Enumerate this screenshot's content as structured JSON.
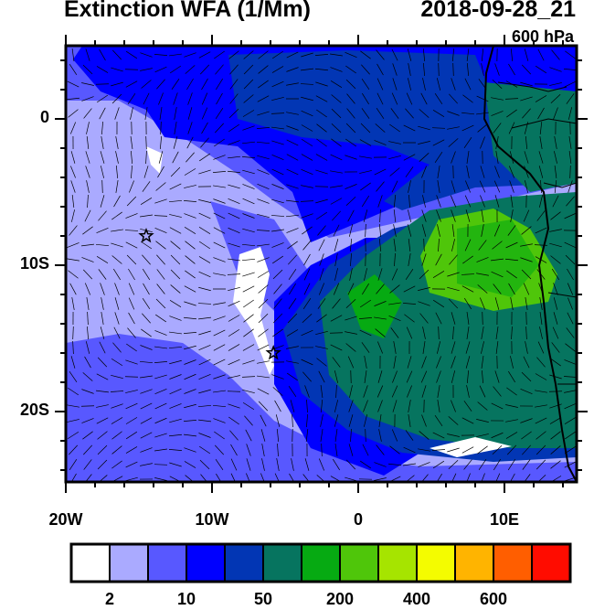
{
  "title": "Extinction WFA (1/Mm)",
  "valid_time": "2018-09-28_21",
  "level": "600 hPa",
  "map": {
    "lon_range": [
      -20,
      15
    ],
    "lat_range": [
      -25,
      5
    ],
    "lon_labels": [
      "20W",
      "10W",
      "0",
      "10E"
    ],
    "lat_labels": [
      "0",
      "10S",
      "20S"
    ],
    "markers": [
      {
        "icon": "star-icon",
        "lon": -14.5,
        "lat": -8
      },
      {
        "icon": "star-icon",
        "lon": -5.8,
        "lat": -16
      }
    ]
  },
  "colorbar": {
    "colors": [
      "#ffffff",
      "#aaaaff",
      "#5858ff",
      "#0000ff",
      "#0236b4",
      "#06745f",
      "#06aa12",
      "#4fc60a",
      "#a6e400",
      "#f4fc00",
      "#ffb400",
      "#ff5e00",
      "#ff0c00"
    ],
    "labels": [
      "2",
      "10",
      "50",
      "200",
      "400",
      "600"
    ]
  },
  "colors": {
    "coastline": "#000000",
    "wind_barbs": "#000000"
  }
}
